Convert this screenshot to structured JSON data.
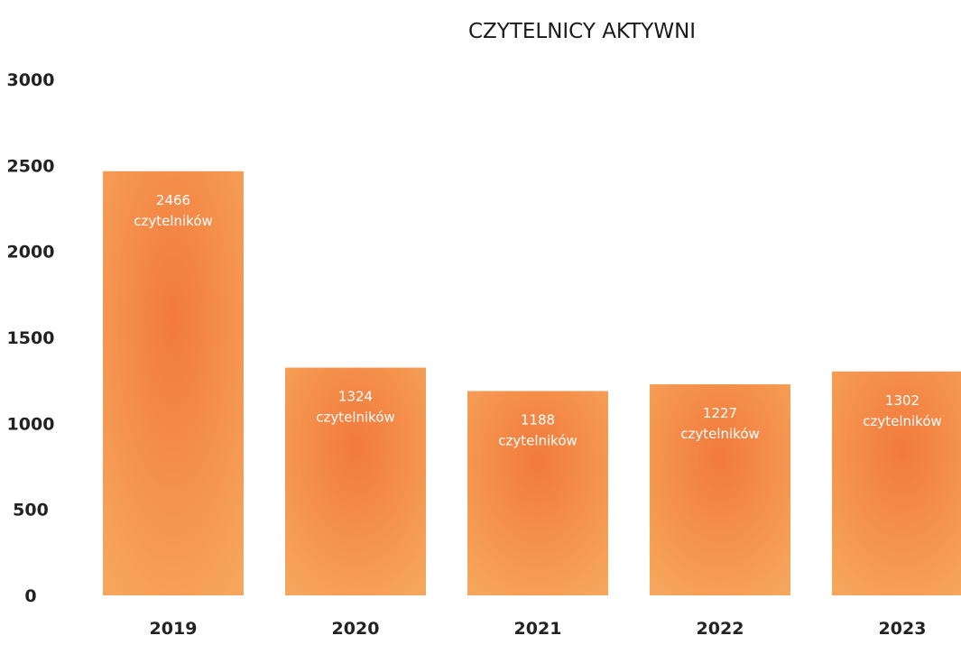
{
  "chart_data": {
    "type": "bar",
    "title": "CZYTELNICY AKTYWNI",
    "xlabel": "",
    "ylabel": "",
    "categories": [
      "2019",
      "2020",
      "2021",
      "2022",
      "2023"
    ],
    "values": [
      2466,
      1324,
      1188,
      1227,
      1302
    ],
    "data_labels": [
      {
        "value": "2466",
        "unit": "czytelników"
      },
      {
        "value": "1324",
        "unit": "czytelników"
      },
      {
        "value": "1188",
        "unit": "czytelników"
      },
      {
        "value": "1227",
        "unit": "czytelników"
      },
      {
        "value": "1302",
        "unit": "czytelników"
      }
    ],
    "y_ticks": [
      "0",
      "500",
      "1000",
      "1500",
      "2000",
      "2500",
      "3000"
    ],
    "ylim": [
      0,
      3000
    ],
    "grid": false,
    "legend": "none",
    "colors": {
      "bar_edge": "#f6a55c",
      "bar_center": "#f27a3c",
      "bar_label": "#ffffff",
      "axis_text": "#222222",
      "title_text": "#1a1a1a"
    }
  }
}
